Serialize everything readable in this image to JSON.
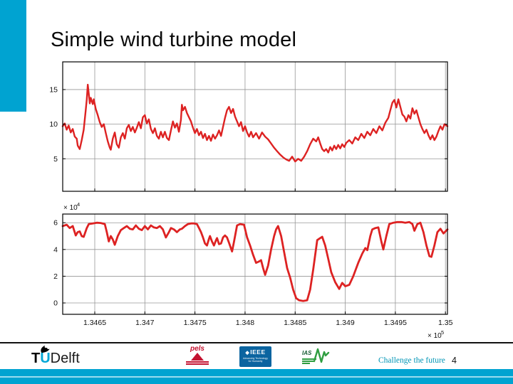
{
  "slide": {
    "title": "Simple wind turbine model",
    "page_number": "4",
    "tagline": "Challenge the future"
  },
  "footer": {
    "tu_logo": {
      "t": "T",
      "u": "U",
      "delft": "Delft"
    },
    "pels": {
      "label": "pels"
    },
    "ieee": {
      "diamond": "◆",
      "label": "IEEE",
      "tagline": "Advancing Technology\nfor Humanity"
    },
    "ias": {
      "label": "IAS"
    }
  },
  "colors": {
    "accent_cyan": "#00A3D1",
    "band_stripe": "#9ADCEF",
    "line_red": "#DD2222",
    "grid_gray": "#969696",
    "tagline_teal": "#0095B6",
    "ieee_blue": "#0B64A0",
    "pels_red": "#C41230",
    "ias_green": "#2F9E41"
  },
  "chart_data": [
    {
      "type": "line",
      "name": "wind-speed-plot",
      "title": "",
      "xlabel": "",
      "ylabel": "",
      "line_color": "#DD2222",
      "line_width": 2.4,
      "x_start": 134618,
      "x_end": 135002,
      "ylim": [
        0.3,
        19.0
      ],
      "yticks": [
        5,
        10,
        15
      ],
      "ytick_labels": [
        "5",
        "10",
        "15"
      ],
      "xticks": [
        134650,
        134700,
        134750,
        134800,
        134850,
        134900,
        134950,
        135000
      ],
      "xtick_labels": [],
      "grid": true,
      "points": [
        [
          0,
          9.7
        ],
        [
          2,
          10.1
        ],
        [
          4,
          9.2
        ],
        [
          6,
          9.8
        ],
        [
          8,
          8.8
        ],
        [
          10,
          9.3
        ],
        [
          12,
          8.2
        ],
        [
          14,
          7.9
        ],
        [
          15,
          6.9
        ],
        [
          17,
          6.4
        ],
        [
          19,
          7.7
        ],
        [
          21,
          9.2
        ],
        [
          23,
          12.0
        ],
        [
          24,
          13.6
        ],
        [
          25,
          15.7
        ],
        [
          26,
          14.4
        ],
        [
          27,
          13.0
        ],
        [
          28,
          13.8
        ],
        [
          30,
          12.9
        ],
        [
          31,
          13.6
        ],
        [
          33,
          12.2
        ],
        [
          35,
          11.3
        ],
        [
          37,
          10.3
        ],
        [
          39,
          9.6
        ],
        [
          41,
          10.0
        ],
        [
          43,
          8.7
        ],
        [
          45,
          7.5
        ],
        [
          47,
          6.6
        ],
        [
          48,
          6.3
        ],
        [
          50,
          7.9
        ],
        [
          52,
          8.8
        ],
        [
          54,
          7.1
        ],
        [
          56,
          6.6
        ],
        [
          58,
          8.1
        ],
        [
          60,
          8.7
        ],
        [
          62,
          7.9
        ],
        [
          64,
          9.4
        ],
        [
          66,
          9.9
        ],
        [
          68,
          9.0
        ],
        [
          70,
          9.6
        ],
        [
          72,
          8.8
        ],
        [
          74,
          9.5
        ],
        [
          76,
          10.3
        ],
        [
          78,
          9.4
        ],
        [
          80,
          11.0
        ],
        [
          82,
          11.3
        ],
        [
          84,
          10.1
        ],
        [
          86,
          10.7
        ],
        [
          88,
          9.3
        ],
        [
          90,
          8.7
        ],
        [
          92,
          9.4
        ],
        [
          94,
          8.3
        ],
        [
          96,
          7.9
        ],
        [
          98,
          8.9
        ],
        [
          100,
          8.1
        ],
        [
          102,
          8.9
        ],
        [
          104,
          8.0
        ],
        [
          106,
          7.7
        ],
        [
          108,
          9.1
        ],
        [
          110,
          10.4
        ],
        [
          112,
          9.5
        ],
        [
          114,
          10.1
        ],
        [
          116,
          8.9
        ],
        [
          118,
          10.6
        ],
        [
          119,
          12.8
        ],
        [
          120,
          12.0
        ],
        [
          122,
          12.5
        ],
        [
          124,
          11.6
        ],
        [
          126,
          11.0
        ],
        [
          128,
          10.4
        ],
        [
          130,
          9.5
        ],
        [
          132,
          8.7
        ],
        [
          134,
          9.3
        ],
        [
          136,
          8.4
        ],
        [
          138,
          8.9
        ],
        [
          140,
          8.0
        ],
        [
          142,
          8.6
        ],
        [
          144,
          7.7
        ],
        [
          146,
          8.3
        ],
        [
          148,
          7.6
        ],
        [
          150,
          8.5
        ],
        [
          152,
          7.9
        ],
        [
          154,
          8.4
        ],
        [
          156,
          9.1
        ],
        [
          158,
          8.3
        ],
        [
          160,
          9.6
        ],
        [
          162,
          10.9
        ],
        [
          164,
          12.0
        ],
        [
          166,
          12.5
        ],
        [
          168,
          11.6
        ],
        [
          170,
          12.2
        ],
        [
          172,
          11.1
        ],
        [
          174,
          10.4
        ],
        [
          176,
          9.7
        ],
        [
          178,
          10.3
        ],
        [
          180,
          9.0
        ],
        [
          182,
          9.7
        ],
        [
          184,
          8.8
        ],
        [
          186,
          8.2
        ],
        [
          188,
          8.9
        ],
        [
          190,
          8.1
        ],
        [
          193,
          8.7
        ],
        [
          196,
          7.9
        ],
        [
          199,
          8.8
        ],
        [
          202,
          8.2
        ],
        [
          205,
          7.8
        ],
        [
          208,
          7.2
        ],
        [
          211,
          6.6
        ],
        [
          214,
          6.1
        ],
        [
          217,
          5.6
        ],
        [
          220,
          5.2
        ],
        [
          223,
          4.9
        ],
        [
          226,
          4.7
        ],
        [
          229,
          5.3
        ],
        [
          232,
          4.6
        ],
        [
          235,
          5.0
        ],
        [
          238,
          4.7
        ],
        [
          241,
          5.3
        ],
        [
          244,
          6.1
        ],
        [
          247,
          7.1
        ],
        [
          250,
          7.9
        ],
        [
          253,
          7.5
        ],
        [
          255,
          8.1
        ],
        [
          257,
          7.2
        ],
        [
          259,
          6.4
        ],
        [
          261,
          6.1
        ],
        [
          263,
          6.4
        ],
        [
          265,
          5.9
        ],
        [
          267,
          6.7
        ],
        [
          269,
          6.2
        ],
        [
          271,
          6.9
        ],
        [
          273,
          6.4
        ],
        [
          275,
          7.0
        ],
        [
          277,
          6.5
        ],
        [
          279,
          7.1
        ],
        [
          281,
          6.7
        ],
        [
          283,
          7.3
        ],
        [
          286,
          7.7
        ],
        [
          289,
          7.2
        ],
        [
          292,
          8.1
        ],
        [
          295,
          7.7
        ],
        [
          298,
          8.6
        ],
        [
          301,
          8.0
        ],
        [
          304,
          8.9
        ],
        [
          307,
          8.4
        ],
        [
          310,
          9.3
        ],
        [
          313,
          8.7
        ],
        [
          316,
          9.7
        ],
        [
          319,
          9.1
        ],
        [
          322,
          10.2
        ],
        [
          325,
          10.9
        ],
        [
          327,
          12.0
        ],
        [
          329,
          13.1
        ],
        [
          331,
          13.5
        ],
        [
          333,
          12.4
        ],
        [
          335,
          13.6
        ],
        [
          337,
          12.5
        ],
        [
          339,
          11.4
        ],
        [
          341,
          11.1
        ],
        [
          343,
          10.4
        ],
        [
          345,
          11.3
        ],
        [
          347,
          10.8
        ],
        [
          349,
          12.3
        ],
        [
          351,
          11.5
        ],
        [
          353,
          12.0
        ],
        [
          355,
          11.0
        ],
        [
          357,
          10.0
        ],
        [
          359,
          9.3
        ],
        [
          361,
          8.7
        ],
        [
          363,
          9.2
        ],
        [
          365,
          8.4
        ],
        [
          367,
          7.8
        ],
        [
          369,
          8.4
        ],
        [
          371,
          7.7
        ],
        [
          373,
          8.2
        ],
        [
          375,
          9.0
        ],
        [
          377,
          9.7
        ],
        [
          379,
          9.2
        ],
        [
          381,
          10.0
        ],
        [
          384,
          9.7
        ]
      ]
    },
    {
      "type": "line",
      "name": "power-plot",
      "title": "",
      "xlabel": "",
      "ylabel": "",
      "line_color": "#DD2222",
      "line_width": 2.8,
      "x_start": 134618,
      "x_end": 135002,
      "ylim": [
        -0.85,
        6.65
      ],
      "yticks": [
        0,
        2,
        4,
        6
      ],
      "ytick_labels": [
        "0",
        "2",
        "4",
        "6"
      ],
      "xticks": [
        134650,
        134700,
        134750,
        134800,
        134850,
        134900,
        134950,
        135000
      ],
      "xtick_labels": [
        "1.3465",
        "1.347",
        "1.3475",
        "1.348",
        "1.3485",
        "1.349",
        "1.3495",
        "1.35"
      ],
      "x_exponent_prefix": "× 10",
      "x_exponent": "5",
      "y_exponent_prefix": "× 10",
      "y_exponent": "4",
      "grid": true,
      "points": [
        [
          0,
          5.75
        ],
        [
          4,
          5.85
        ],
        [
          7,
          5.6
        ],
        [
          10,
          5.75
        ],
        [
          13,
          5.05
        ],
        [
          15,
          5.3
        ],
        [
          17,
          5.35
        ],
        [
          19,
          5.0
        ],
        [
          21,
          4.95
        ],
        [
          24,
          5.6
        ],
        [
          26,
          5.9
        ],
        [
          30,
          5.95
        ],
        [
          34,
          6.0
        ],
        [
          38,
          5.98
        ],
        [
          42,
          5.9
        ],
        [
          44,
          5.3
        ],
        [
          46,
          4.6
        ],
        [
          48,
          5.0
        ],
        [
          50,
          4.75
        ],
        [
          52,
          4.35
        ],
        [
          55,
          5.0
        ],
        [
          58,
          5.45
        ],
        [
          61,
          5.6
        ],
        [
          64,
          5.75
        ],
        [
          67,
          5.55
        ],
        [
          70,
          5.5
        ],
        [
          73,
          5.8
        ],
        [
          76,
          5.55
        ],
        [
          79,
          5.45
        ],
        [
          82,
          5.75
        ],
        [
          85,
          5.5
        ],
        [
          88,
          5.8
        ],
        [
          91,
          5.65
        ],
        [
          94,
          5.6
        ],
        [
          97,
          5.75
        ],
        [
          100,
          5.5
        ],
        [
          103,
          4.9
        ],
        [
          106,
          5.3
        ],
        [
          108,
          5.6
        ],
        [
          111,
          5.5
        ],
        [
          114,
          5.3
        ],
        [
          117,
          5.5
        ],
        [
          119,
          5.55
        ],
        [
          122,
          5.75
        ],
        [
          125,
          5.9
        ],
        [
          128,
          5.95
        ],
        [
          131,
          5.95
        ],
        [
          134,
          5.9
        ],
        [
          136,
          5.6
        ],
        [
          138,
          5.3
        ],
        [
          140,
          4.9
        ],
        [
          142,
          4.45
        ],
        [
          144,
          4.3
        ],
        [
          146,
          4.8
        ],
        [
          147,
          5.0
        ],
        [
          149,
          4.6
        ],
        [
          151,
          4.3
        ],
        [
          153,
          4.7
        ],
        [
          154,
          4.85
        ],
        [
          156,
          4.4
        ],
        [
          158,
          4.45
        ],
        [
          160,
          4.9
        ],
        [
          162,
          5.05
        ],
        [
          164,
          4.9
        ],
        [
          166,
          4.5
        ],
        [
          169,
          3.85
        ],
        [
          171,
          4.6
        ],
        [
          174,
          5.8
        ],
        [
          177,
          5.9
        ],
        [
          181,
          5.85
        ],
        [
          184,
          4.9
        ],
        [
          187,
          4.3
        ],
        [
          190,
          3.6
        ],
        [
          193,
          3.0
        ],
        [
          196,
          3.1
        ],
        [
          198,
          3.2
        ],
        [
          200,
          2.6
        ],
        [
          202,
          2.1
        ],
        [
          205,
          2.8
        ],
        [
          208,
          4.0
        ],
        [
          211,
          5.0
        ],
        [
          213,
          5.5
        ],
        [
          215,
          5.75
        ],
        [
          218,
          5.0
        ],
        [
          221,
          3.8
        ],
        [
          224,
          2.6
        ],
        [
          227,
          1.9
        ],
        [
          230,
          1.0
        ],
        [
          233,
          0.35
        ],
        [
          236,
          0.2
        ],
        [
          240,
          0.15
        ],
        [
          244,
          0.2
        ],
        [
          247,
          1.0
        ],
        [
          250,
          2.5
        ],
        [
          254,
          4.7
        ],
        [
          257,
          4.85
        ],
        [
          259,
          4.95
        ],
        [
          262,
          4.3
        ],
        [
          265,
          3.3
        ],
        [
          268,
          2.3
        ],
        [
          272,
          1.55
        ],
        [
          276,
          1.05
        ],
        [
          279,
          1.5
        ],
        [
          282,
          1.25
        ],
        [
          286,
          1.35
        ],
        [
          290,
          2.0
        ],
        [
          295,
          3.0
        ],
        [
          299,
          3.7
        ],
        [
          302,
          4.1
        ],
        [
          304,
          3.95
        ],
        [
          307,
          5.0
        ],
        [
          309,
          5.5
        ],
        [
          312,
          5.6
        ],
        [
          315,
          5.65
        ],
        [
          318,
          4.6
        ],
        [
          320,
          4.0
        ],
        [
          323,
          5.0
        ],
        [
          326,
          5.9
        ],
        [
          330,
          6.0
        ],
        [
          334,
          6.05
        ],
        [
          338,
          6.05
        ],
        [
          342,
          6.0
        ],
        [
          346,
          6.05
        ],
        [
          349,
          5.9
        ],
        [
          351,
          5.4
        ],
        [
          354,
          5.9
        ],
        [
          357,
          6.0
        ],
        [
          360,
          5.3
        ],
        [
          363,
          4.3
        ],
        [
          366,
          3.5
        ],
        [
          368,
          3.45
        ],
        [
          371,
          4.3
        ],
        [
          374,
          5.3
        ],
        [
          377,
          5.55
        ],
        [
          380,
          5.2
        ],
        [
          384,
          5.5
        ]
      ]
    }
  ]
}
